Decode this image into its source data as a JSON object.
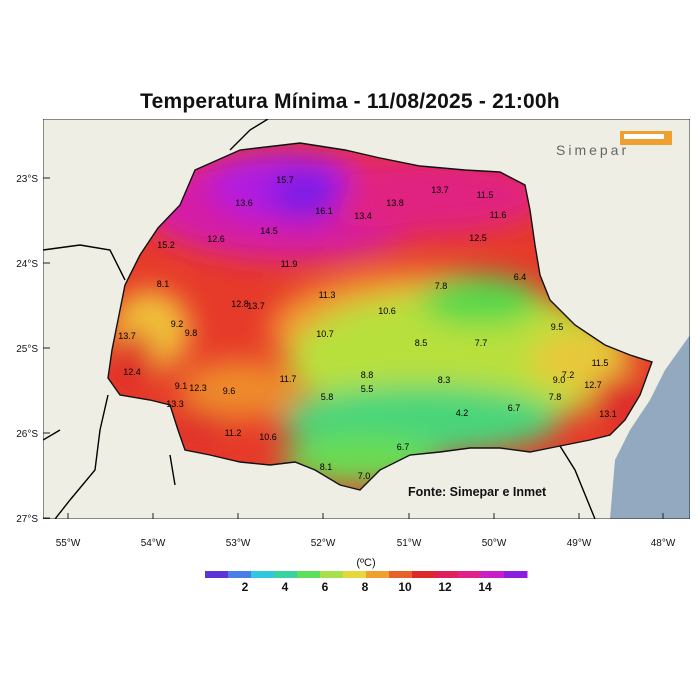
{
  "title": "Temperatura Mínima - 11/08/2025 - 21:00h",
  "logo_text": "Simepar",
  "source": "Fonte: Simepar e Inmet",
  "lat_ticks": [
    "23°S",
    "24°S",
    "25°S",
    "26°S",
    "27°S"
  ],
  "lon_ticks": [
    "55°W",
    "54°W",
    "53°W",
    "52°W",
    "51°W",
    "50°W",
    "49°W",
    "48°W"
  ],
  "colorbar": {
    "unit": "(ºC)",
    "labels": [
      "2",
      "4",
      "6",
      "8",
      "10",
      "12",
      "14"
    ],
    "colors": [
      "#5b34d8",
      "#4a7de8",
      "#30c8e0",
      "#3ad3a0",
      "#5ede5a",
      "#a6e04a",
      "#e6d83a",
      "#f0a030",
      "#e8602a",
      "#dc2a2a",
      "#e0205a",
      "#e0208c",
      "#c81ec8",
      "#8c1ee0"
    ]
  },
  "station_values": [
    "15.7",
    "13.6",
    "16.1",
    "13.4",
    "13.8",
    "13.7",
    "11.5",
    "11.6",
    "14.5",
    "12.6",
    "15.2",
    "12.5",
    "11.9",
    "8.1",
    "11.3",
    "7.8",
    "6.4",
    "12.8",
    "13.7",
    "9.2",
    "9.8",
    "10.6",
    "13.7",
    "10.7",
    "8.5",
    "7.7",
    "9.5",
    "12.4",
    "11.7",
    "8.8",
    "11.5",
    "9.1",
    "12.3",
    "9.6",
    "5.5",
    "8.3",
    "9.0",
    "7.2",
    "5.8",
    "7.8",
    "12.7",
    "13.3",
    "4.2",
    "6.7",
    "13.1",
    "11.2",
    "10.6",
    "6.7",
    "8.1",
    "7.0"
  ]
}
